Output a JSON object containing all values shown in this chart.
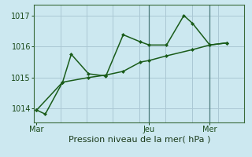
{
  "xlabel": "Pression niveau de la mer( hPa )",
  "background_color": "#cce8f0",
  "grid_color": "#aac8d4",
  "line_color": "#1a5c1a",
  "vline_color": "#4a7a7a",
  "yticks": [
    1014,
    1015,
    1016,
    1017
  ],
  "ylim": [
    1013.55,
    1017.35
  ],
  "xtick_labels": [
    "Mar",
    "Jeu",
    "Mer"
  ],
  "xtick_positions": [
    0,
    13,
    20
  ],
  "xlim": [
    -0.3,
    24.0
  ],
  "line1_x": [
    0,
    1,
    3,
    4,
    6,
    8,
    10,
    12,
    13,
    15,
    17,
    18,
    20,
    22
  ],
  "line1_y": [
    1013.95,
    1013.82,
    1014.85,
    1015.75,
    1015.12,
    1015.05,
    1016.38,
    1016.15,
    1016.05,
    1016.05,
    1017.0,
    1016.75,
    1016.05,
    1016.12
  ],
  "line2_x": [
    0,
    3,
    6,
    8,
    10,
    12,
    13,
    15,
    18,
    20,
    22
  ],
  "line2_y": [
    1013.95,
    1014.85,
    1015.0,
    1015.08,
    1015.2,
    1015.5,
    1015.55,
    1015.7,
    1015.9,
    1016.05,
    1016.12
  ],
  "vline_x": [
    13,
    20
  ],
  "marker": "D",
  "markersize": 2.5,
  "linewidth": 1.1,
  "xlabel_fontsize": 8,
  "tick_fontsize": 7
}
